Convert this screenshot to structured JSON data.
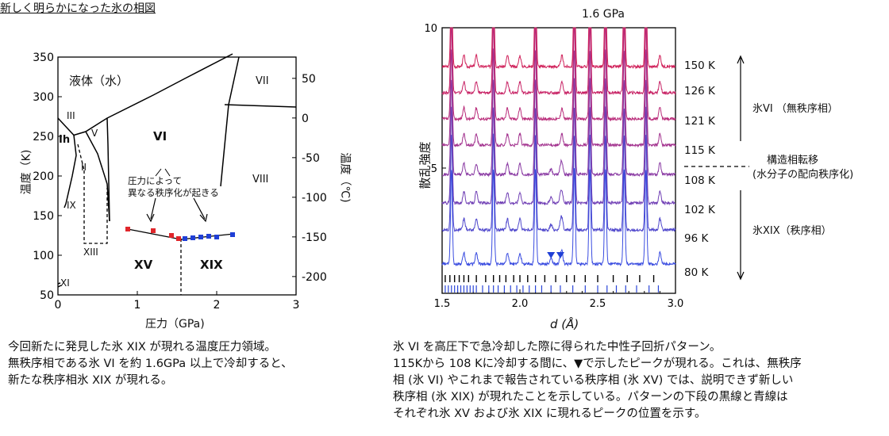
{
  "left": {
    "title": "新しく明らかになった氷の相図",
    "y_axis_label": "温度（K)",
    "y2_axis_label": "温度（℃)",
    "x_axis_label": "圧力（GPa)",
    "x_ticks": [
      "0",
      "1",
      "2",
      "3"
    ],
    "y_ticks": [
      "50",
      "100",
      "150",
      "200",
      "250",
      "300",
      "350"
    ],
    "y2_ticks": [
      "50",
      "0",
      "-50",
      "-100",
      "-150",
      "-200"
    ],
    "phase_labels": {
      "liquid": "液体（水）",
      "vii": "VII",
      "viii": "VIII",
      "iii": "III",
      "ih": "Ih",
      "v": "V",
      "ii": "II",
      "ix": "IX",
      "xiii": "XIII",
      "xi": "XI",
      "vi": "VI",
      "xv": "XV",
      "xix": "XIX"
    },
    "annotation_line1": "圧力によって",
    "annotation_line2": "異なる秩序化が起きる",
    "caption_lines": [
      "今回新たに発見した氷 XIX が現れる温度圧力領域。",
      "無秩序相である氷 VI を約 1.6GPa 以上で冷却すると、",
      "新たな秩序相氷 XIX が現れる。"
    ]
  },
  "right": {
    "pressure_label": "1.6 GPa",
    "y_axis_label": "散乱強度",
    "x_axis_label": "d (Å)",
    "x_ticks": [
      "1.5",
      "2.0",
      "2.5",
      "3.0"
    ],
    "y_ticks": [
      "10",
      "5"
    ],
    "temperatures": [
      "150 K",
      "126 K",
      "121 K",
      "115 K",
      "108 K",
      "102 K",
      "96 K",
      "80 K"
    ],
    "phase_top": "氷VI （無秩序相）",
    "phase_mid_line1": "構造相転移",
    "phase_mid_line2": "(水分子の配向秩序化)",
    "phase_bottom": "氷XIX（秩序相）",
    "caption_lines": [
      "氷 VI を高圧下で急冷却した際に得られた中性子回折パターン。",
      "115Kから 108 Kに冷却する間に、▼で示したピークが現れる。これは、無秩序",
      "相 (氷 VI) やこれまで報告されている秩序相 (氷 XV) では、説明できず新しい",
      "秩序相 (氷 XIX) が現れたことを示している。パターンの下段の黒線と青線は",
      "それぞれ氷 XV および氷 XIX に現れるピークの位置を示す。"
    ]
  },
  "chart_data": [
    {
      "type": "scatter",
      "title": "新しく明らかになった氷の相図",
      "xlabel": "圧力（GPa)",
      "ylabel": "温度（K)",
      "y2label": "温度（℃)",
      "xlim": [
        0,
        3
      ],
      "ylim": [
        50,
        350
      ],
      "series": [
        {
          "name": "XV",
          "color": "#e0262b",
          "x": [
            0.88,
            1.2,
            1.43,
            1.52
          ],
          "y": [
            133,
            131,
            125,
            121
          ]
        },
        {
          "name": "XIX",
          "color": "#1f3fd6",
          "x": [
            1.6,
            1.7,
            1.8,
            1.9,
            2.0,
            2.2
          ],
          "y": [
            121,
            122,
            123,
            124,
            123,
            126
          ]
        }
      ]
    },
    {
      "type": "line",
      "title": "1.6 GPa",
      "xlabel": "d (Å)",
      "ylabel": "散乱強度",
      "xlim": [
        1.5,
        3.0
      ],
      "ylim": [
        0,
        10
      ],
      "series": [
        {
          "name": "150 K",
          "color": "#d0215a"
        },
        {
          "name": "126 K",
          "color": "#c82466"
        },
        {
          "name": "121 K",
          "color": "#b92c7a"
        },
        {
          "name": "115 K",
          "color": "#a3338f"
        },
        {
          "name": "108 K",
          "color": "#8a3aa3"
        },
        {
          "name": "102 K",
          "color": "#7140b5"
        },
        {
          "name": "96 K",
          "color": "#4f47cc"
        },
        {
          "name": "80 K",
          "color": "#3a4ce0"
        }
      ],
      "peaks_main": [
        1.56,
        1.83,
        2.1,
        2.35,
        2.45,
        2.55,
        2.67,
        2.81
      ],
      "peaks_minor": [
        1.64,
        1.72,
        1.92,
        2.0,
        2.27,
        2.9
      ],
      "new_peaks": [
        2.2,
        2.26
      ],
      "ticks_xv": [
        1.52,
        1.55,
        1.58,
        1.61,
        1.64,
        1.67,
        1.72,
        1.78,
        1.83,
        1.87,
        1.91,
        1.96,
        2.0,
        2.05,
        2.1,
        2.16,
        2.23,
        2.3,
        2.35,
        2.42,
        2.5,
        2.6,
        2.69,
        2.77,
        2.86
      ],
      "ticks_xix": [
        1.52,
        1.54,
        1.56,
        1.58,
        1.6,
        1.62,
        1.64,
        1.66,
        1.68,
        1.7,
        1.72,
        1.76,
        1.8,
        1.83,
        1.86,
        1.9,
        1.94,
        1.98,
        2.02,
        2.06,
        2.1,
        2.14,
        2.2,
        2.26,
        2.34,
        2.42,
        2.5,
        2.56,
        2.62,
        2.68,
        2.75,
        2.83,
        2.89
      ]
    }
  ]
}
